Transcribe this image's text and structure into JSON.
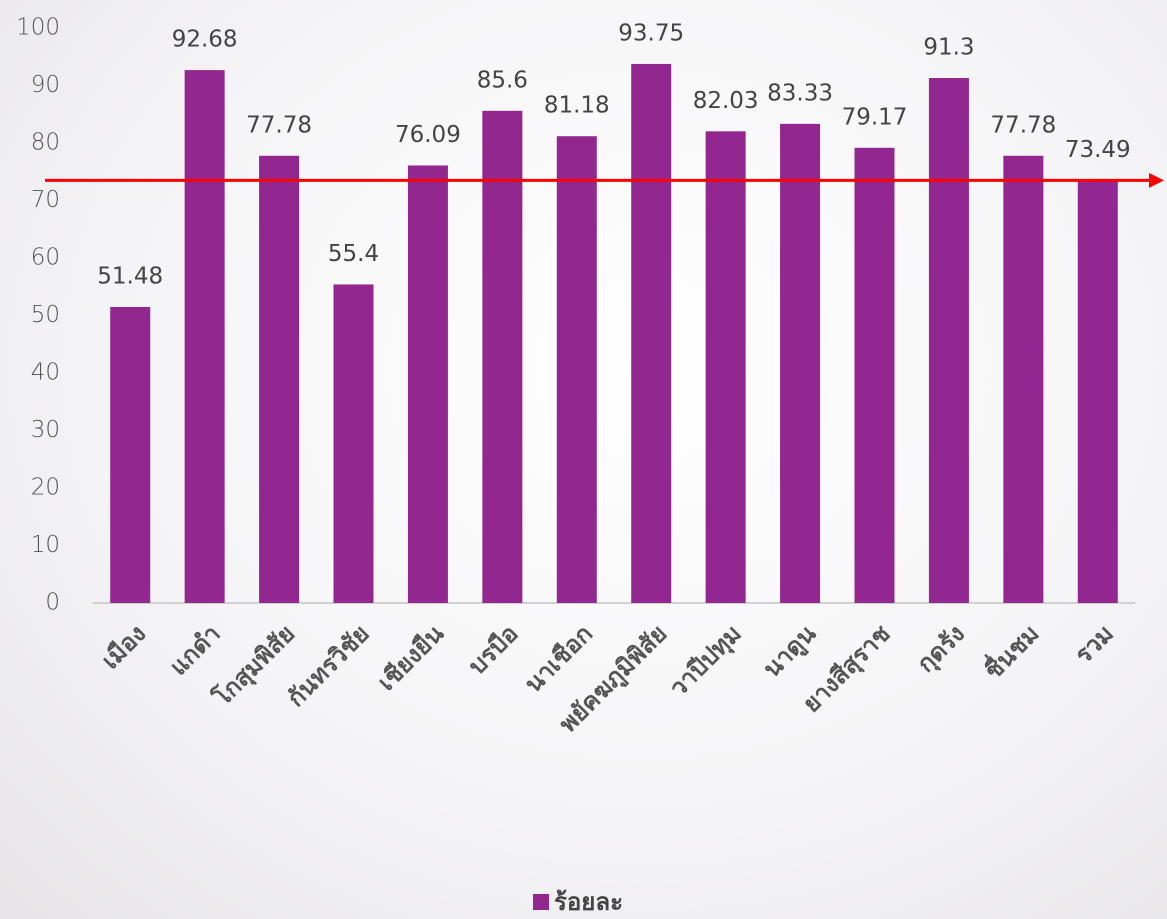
{
  "chart_data": {
    "type": "bar",
    "categories": [
      "เมือง",
      "แกดำ",
      "โกสุมพิสัย",
      "กันทรวิชัย",
      "เชียงยืน",
      "บรบือ",
      "นาเชือก",
      "พยัคฆภูมิพิสัย",
      "วาปีปทุม",
      "นาดูน",
      "ยางสีสุราช",
      "กุดรัง",
      "ชื่นชม",
      "รวม"
    ],
    "series": [
      {
        "name": "ร้อยละ",
        "color": "#92278f",
        "values": [
          51.48,
          92.68,
          77.78,
          55.4,
          76.09,
          85.6,
          81.18,
          93.75,
          82.03,
          83.33,
          79.17,
          91.3,
          77.78,
          73.49
        ]
      }
    ],
    "ylim": [
      0,
      100
    ],
    "yticks": [
      0,
      10,
      20,
      30,
      40,
      50,
      60,
      70,
      80,
      90,
      100
    ],
    "grid": false,
    "reference_line": {
      "value": 73.49,
      "color": "#ff0000"
    },
    "legend": "bottom"
  }
}
